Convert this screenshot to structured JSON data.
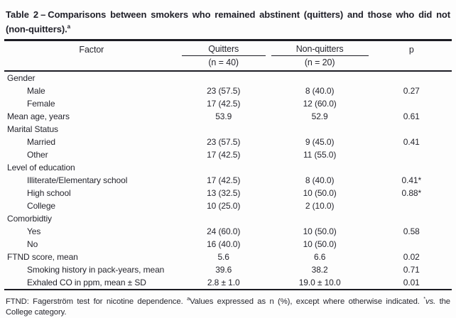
{
  "page": {
    "background": "#fdfdfd",
    "text_color": "#26262e",
    "rule_color": "#1c1c24"
  },
  "title": {
    "label": "Table 2",
    "dash": "–",
    "text": "Comparisons between smokers who remained abstinent (quitters) and those who did not (non-quitters).",
    "marker": "a"
  },
  "table": {
    "header": {
      "factor": "Factor",
      "groups": [
        {
          "label": "Quitters",
          "sub": "(n = 40)"
        },
        {
          "label": "Non-quitters",
          "sub": "(n = 20)"
        }
      ],
      "p": "p"
    },
    "rows": [
      {
        "factor": "Gender",
        "indent": false,
        "quitters": "",
        "non_quitters": "",
        "p": ""
      },
      {
        "factor": "Male",
        "indent": true,
        "quitters": "23 (57.5)",
        "non_quitters": "8 (40.0)",
        "p": "0.27"
      },
      {
        "factor": "Female",
        "indent": true,
        "quitters": "17 (42.5)",
        "non_quitters": "12 (60.0)",
        "p": ""
      },
      {
        "factor": "Mean age, years",
        "indent": false,
        "quitters": "53.9",
        "non_quitters": "52.9",
        "p": "0.61"
      },
      {
        "factor": "Marital Status",
        "indent": false,
        "quitters": "",
        "non_quitters": "",
        "p": ""
      },
      {
        "factor": "Married",
        "indent": true,
        "quitters": "23 (57.5)",
        "non_quitters": "9 (45.0)",
        "p": "0.41"
      },
      {
        "factor": "Other",
        "indent": true,
        "quitters": "17 (42.5)",
        "non_quitters": "11 (55.0)",
        "p": ""
      },
      {
        "factor": "Level of education",
        "indent": false,
        "quitters": "",
        "non_quitters": "",
        "p": ""
      },
      {
        "factor": "Illiterate/Elementary school",
        "indent": true,
        "quitters": "17 (42.5)",
        "non_quitters": "8 (40.0)",
        "p": "0.41*"
      },
      {
        "factor": "High school",
        "indent": true,
        "quitters": "13 (32.5)",
        "non_quitters": "10 (50.0)",
        "p": "0.88*"
      },
      {
        "factor": "College",
        "indent": true,
        "quitters": "10 (25.0)",
        "non_quitters": "2 (10.0)",
        "p": ""
      },
      {
        "factor": "Comorbidtiy",
        "indent": false,
        "quitters": "",
        "non_quitters": "",
        "p": ""
      },
      {
        "factor": "Yes",
        "indent": true,
        "quitters": "24 (60.0)",
        "non_quitters": "10 (50.0)",
        "p": "0.58"
      },
      {
        "factor": "No",
        "indent": true,
        "quitters": "16 (40.0)",
        "non_quitters": "10 (50.0)",
        "p": ""
      },
      {
        "factor": "FTND score, mean",
        "indent": false,
        "quitters": "5.6",
        "non_quitters": "6.6",
        "p": "0.02"
      },
      {
        "factor": "Smoking history in pack-years, mean",
        "indent": true,
        "quitters": "39.6",
        "non_quitters": "38.2",
        "p": "0.71"
      },
      {
        "factor": "Exhaled CO in ppm, mean ± SD",
        "indent": true,
        "quitters": "2.8 ± 1.0",
        "non_quitters": "19.0 ± 10.0",
        "p": "0.01"
      }
    ]
  },
  "footnote": {
    "segments": [
      {
        "text": "FTND: Fagerström test for nicotine dependence. ",
        "style": "normal"
      },
      {
        "text": "a",
        "style": "sup"
      },
      {
        "text": "Values expressed as n (%), except where otherwise indicated. ",
        "style": "normal"
      },
      {
        "text": "*",
        "style": "sup"
      },
      {
        "text": "vs.",
        "style": "italic"
      },
      {
        "text": " the College category.",
        "style": "normal"
      }
    ]
  }
}
